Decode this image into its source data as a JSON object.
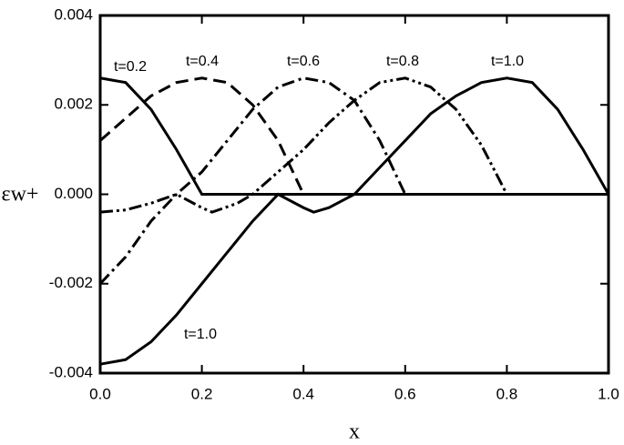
{
  "chart_data": {
    "type": "line",
    "x_label": "x",
    "y_label": "εw+",
    "xlim": [
      0,
      1
    ],
    "ylim": [
      -0.004,
      0.004
    ],
    "xticks": [
      {
        "value": 0,
        "label": "0.0"
      },
      0.2,
      0.4,
      0.6,
      0.8,
      {
        "value": 1,
        "label": "1.0"
      }
    ],
    "yticks": [
      -0.004,
      -0.002,
      {
        "value": 0,
        "label": "0.000"
      },
      0.002,
      0.004
    ],
    "grid": false,
    "annotations": [
      "t=0.2",
      "t=0.4",
      "t=0.6",
      "t=0.8",
      "t=1.0",
      "t=1.0"
    ],
    "series": [
      {
        "name": "t=0.2",
        "color": "#000000",
        "dash": "solid",
        "x": [
          0,
          0.05,
          0.1,
          0.15,
          0.2,
          1.0
        ],
        "values": [
          0.0026,
          0.0025,
          0.0019,
          0.001,
          0,
          0
        ]
      },
      {
        "name": "t=0.4",
        "color": "#000000",
        "dash": "dashed",
        "x": [
          0,
          0.05,
          0.1,
          0.15,
          0.2,
          0.25,
          0.3,
          0.35,
          0.4
        ],
        "values": [
          0.0012,
          0.0017,
          0.0022,
          0.0025,
          0.0026,
          0.0025,
          0.002,
          0.0012,
          0
        ]
      },
      {
        "name": "t=0.6",
        "color": "#000000",
        "dash": "dashdot",
        "x": [
          0,
          0.05,
          0.1,
          0.15,
          0.2,
          0.25,
          0.3,
          0.35,
          0.4,
          0.45,
          0.5,
          0.55,
          0.6
        ],
        "values": [
          -0.002,
          -0.0014,
          -0.0006,
          0,
          0.0005,
          0.0012,
          0.0019,
          0.0024,
          0.0026,
          0.0025,
          0.0021,
          0.0012,
          0
        ]
      },
      {
        "name": "t=0.8",
        "color": "#000000",
        "dash": "dashdotdot",
        "x": [
          0,
          0.05,
          0.1,
          0.15,
          0.2,
          0.22,
          0.27,
          0.3,
          0.35,
          0.4,
          0.45,
          0.5,
          0.55,
          0.6,
          0.65,
          0.7,
          0.75,
          0.8
        ],
        "values": [
          -0.0004,
          -0.00035,
          -0.0002,
          0,
          -0.0003,
          -0.0004,
          -0.0002,
          0,
          0.0005,
          0.001,
          0.0016,
          0.0021,
          0.0025,
          0.0026,
          0.0024,
          0.0019,
          0.0011,
          0
        ]
      },
      {
        "name": "t=1.0",
        "color": "#000000",
        "dash": "solid",
        "x": [
          0,
          0.05,
          0.1,
          0.15,
          0.2,
          0.25,
          0.3,
          0.35,
          0.4,
          0.42,
          0.45,
          0.5,
          0.55,
          0.6,
          0.65,
          0.7,
          0.75,
          0.8,
          0.85,
          0.9,
          0.95,
          1.0
        ],
        "values": [
          -0.0038,
          -0.0037,
          -0.0033,
          -0.0027,
          -0.002,
          -0.0013,
          -0.0006,
          0,
          -0.0003,
          -0.0004,
          -0.0003,
          0,
          0.0006,
          0.0012,
          0.0018,
          0.0022,
          0.0025,
          0.0026,
          0.0025,
          0.0019,
          0.001,
          0
        ]
      }
    ]
  }
}
